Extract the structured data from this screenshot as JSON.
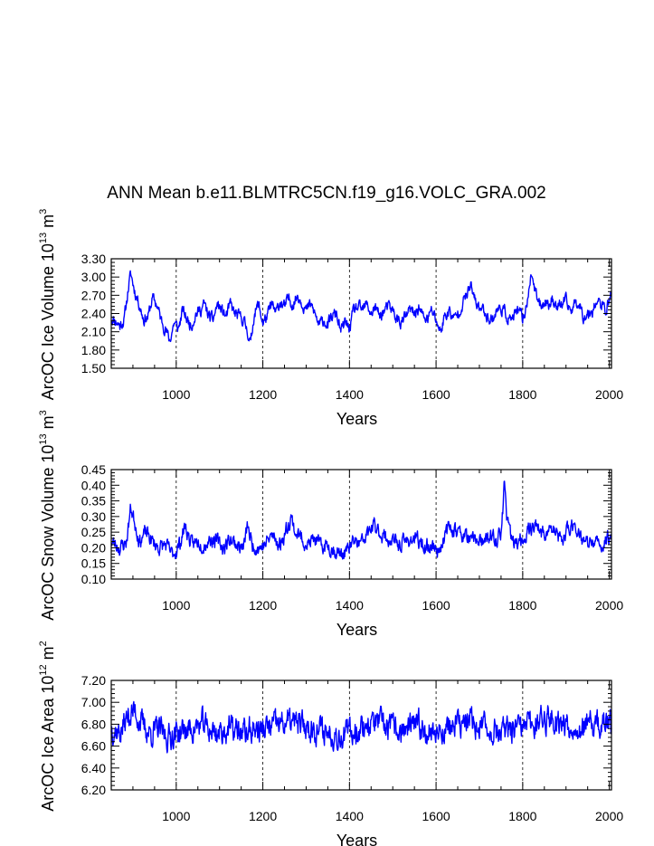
{
  "figure": {
    "title": "ANN Mean b.e11.BLMTRC5CN.f19_g16.VOLC_GRA.002"
  },
  "chart_data": [
    {
      "type": "line",
      "name": "ice-volume",
      "ylabel": {
        "main": "ArcOC Ice Volume 10",
        "exp": "13",
        "unit": " m",
        "unit_exp": "3"
      },
      "xlabel": "Years",
      "xlim": [
        850,
        2005
      ],
      "ylim": [
        1.5,
        3.3
      ],
      "xticks": [
        1000,
        1200,
        1400,
        1600,
        1800,
        2000
      ],
      "yticks": [
        1.5,
        1.8,
        2.1,
        2.4,
        2.7,
        3.0,
        3.3
      ],
      "ytick_labels": [
        "1.50",
        "1.80",
        "2.10",
        "2.40",
        "2.70",
        "3.00",
        "3.30"
      ],
      "vgrid": [
        1000,
        1200,
        1400,
        1600,
        1800
      ],
      "line_color": "#0000ff",
      "anchors": [
        [
          850,
          2.33
        ],
        [
          860,
          2.28
        ],
        [
          870,
          2.2
        ],
        [
          880,
          2.3
        ],
        [
          890,
          2.85
        ],
        [
          895,
          3.05
        ],
        [
          905,
          2.75
        ],
        [
          915,
          2.55
        ],
        [
          925,
          2.3
        ],
        [
          935,
          2.35
        ],
        [
          945,
          2.65
        ],
        [
          955,
          2.55
        ],
        [
          965,
          2.3
        ],
        [
          975,
          2.15
        ],
        [
          985,
          1.95
        ],
        [
          995,
          2.25
        ],
        [
          1005,
          2.15
        ],
        [
          1015,
          2.45
        ],
        [
          1025,
          2.3
        ],
        [
          1035,
          2.2
        ],
        [
          1045,
          2.4
        ],
        [
          1055,
          2.45
        ],
        [
          1065,
          2.55
        ],
        [
          1075,
          2.35
        ],
        [
          1085,
          2.3
        ],
        [
          1095,
          2.55
        ],
        [
          1105,
          2.45
        ],
        [
          1115,
          2.35
        ],
        [
          1125,
          2.55
        ],
        [
          1135,
          2.4
        ],
        [
          1145,
          2.35
        ],
        [
          1155,
          2.3
        ],
        [
          1165,
          2.1
        ],
        [
          1172,
          1.9
        ],
        [
          1180,
          2.4
        ],
        [
          1190,
          2.55
        ],
        [
          1200,
          2.25
        ],
        [
          1210,
          2.35
        ],
        [
          1220,
          2.55
        ],
        [
          1230,
          2.4
        ],
        [
          1240,
          2.6
        ],
        [
          1250,
          2.5
        ],
        [
          1260,
          2.65
        ],
        [
          1270,
          2.55
        ],
        [
          1280,
          2.7
        ],
        [
          1290,
          2.6
        ],
        [
          1300,
          2.45
        ],
        [
          1310,
          2.55
        ],
        [
          1320,
          2.4
        ],
        [
          1330,
          2.2
        ],
        [
          1340,
          2.3
        ],
        [
          1350,
          2.2
        ],
        [
          1360,
          2.35
        ],
        [
          1370,
          2.4
        ],
        [
          1380,
          2.1
        ],
        [
          1390,
          2.25
        ],
        [
          1400,
          2.15
        ],
        [
          1410,
          2.45
        ],
        [
          1420,
          2.5
        ],
        [
          1430,
          2.45
        ],
        [
          1440,
          2.55
        ],
        [
          1450,
          2.4
        ],
        [
          1460,
          2.5
        ],
        [
          1470,
          2.35
        ],
        [
          1480,
          2.45
        ],
        [
          1490,
          2.5
        ],
        [
          1500,
          2.45
        ],
        [
          1510,
          2.3
        ],
        [
          1520,
          2.25
        ],
        [
          1530,
          2.35
        ],
        [
          1540,
          2.45
        ],
        [
          1550,
          2.4
        ],
        [
          1560,
          2.5
        ],
        [
          1570,
          2.35
        ],
        [
          1580,
          2.3
        ],
        [
          1590,
          2.45
        ],
        [
          1600,
          2.3
        ],
        [
          1610,
          2.1
        ],
        [
          1620,
          2.35
        ],
        [
          1630,
          2.45
        ],
        [
          1640,
          2.3
        ],
        [
          1650,
          2.4
        ],
        [
          1660,
          2.55
        ],
        [
          1670,
          2.7
        ],
        [
          1680,
          2.85
        ],
        [
          1690,
          2.6
        ],
        [
          1700,
          2.5
        ],
        [
          1710,
          2.45
        ],
        [
          1720,
          2.35
        ],
        [
          1730,
          2.3
        ],
        [
          1740,
          2.45
        ],
        [
          1750,
          2.5
        ],
        [
          1760,
          2.4
        ],
        [
          1770,
          2.3
        ],
        [
          1780,
          2.35
        ],
        [
          1790,
          2.45
        ],
        [
          1800,
          2.3
        ],
        [
          1810,
          2.55
        ],
        [
          1815,
          2.9
        ],
        [
          1822,
          3.05
        ],
        [
          1830,
          2.7
        ],
        [
          1840,
          2.55
        ],
        [
          1850,
          2.6
        ],
        [
          1860,
          2.55
        ],
        [
          1870,
          2.65
        ],
        [
          1880,
          2.5
        ],
        [
          1890,
          2.55
        ],
        [
          1900,
          2.6
        ],
        [
          1910,
          2.45
        ],
        [
          1920,
          2.55
        ],
        [
          1930,
          2.6
        ],
        [
          1940,
          2.35
        ],
        [
          1950,
          2.4
        ],
        [
          1960,
          2.45
        ],
        [
          1970,
          2.6
        ],
        [
          1980,
          2.55
        ],
        [
          1990,
          2.45
        ],
        [
          2000,
          2.6
        ],
        [
          2005,
          2.75
        ]
      ],
      "noise": {
        "amp": 0.09,
        "seed": 11
      }
    },
    {
      "type": "line",
      "name": "snow-volume",
      "ylabel": {
        "main": "ArcOC Snow Volume 10",
        "exp": "13",
        "unit": " m",
        "unit_exp": "3"
      },
      "xlabel": "Years",
      "xlim": [
        850,
        2005
      ],
      "ylim": [
        0.1,
        0.45
      ],
      "xticks": [
        1000,
        1200,
        1400,
        1600,
        1800,
        2000
      ],
      "yticks": [
        0.1,
        0.15,
        0.2,
        0.25,
        0.3,
        0.35,
        0.4,
        0.45
      ],
      "ytick_labels": [
        "0.10",
        "0.15",
        "0.20",
        "0.25",
        "0.30",
        "0.35",
        "0.40",
        "0.45"
      ],
      "vgrid": [
        1000,
        1200,
        1400,
        1600,
        1800
      ],
      "line_color": "#0000ff",
      "anchors": [
        [
          850,
          0.22
        ],
        [
          870,
          0.2
        ],
        [
          885,
          0.22
        ],
        [
          895,
          0.33
        ],
        [
          905,
          0.28
        ],
        [
          915,
          0.22
        ],
        [
          930,
          0.25
        ],
        [
          945,
          0.22
        ],
        [
          960,
          0.2
        ],
        [
          975,
          0.21
        ],
        [
          990,
          0.18
        ],
        [
          1000,
          0.19
        ],
        [
          1010,
          0.22
        ],
        [
          1020,
          0.27
        ],
        [
          1035,
          0.21
        ],
        [
          1050,
          0.22
        ],
        [
          1065,
          0.21
        ],
        [
          1080,
          0.23
        ],
        [
          1095,
          0.22
        ],
        [
          1110,
          0.2
        ],
        [
          1125,
          0.23
        ],
        [
          1140,
          0.21
        ],
        [
          1155,
          0.2
        ],
        [
          1165,
          0.27
        ],
        [
          1175,
          0.21
        ],
        [
          1190,
          0.2
        ],
        [
          1205,
          0.21
        ],
        [
          1220,
          0.24
        ],
        [
          1240,
          0.21
        ],
        [
          1255,
          0.26
        ],
        [
          1265,
          0.3
        ],
        [
          1275,
          0.25
        ],
        [
          1290,
          0.23
        ],
        [
          1305,
          0.21
        ],
        [
          1320,
          0.23
        ],
        [
          1335,
          0.2
        ],
        [
          1350,
          0.21
        ],
        [
          1365,
          0.19
        ],
        [
          1380,
          0.18
        ],
        [
          1395,
          0.19
        ],
        [
          1410,
          0.22
        ],
        [
          1425,
          0.21
        ],
        [
          1440,
          0.24
        ],
        [
          1455,
          0.27
        ],
        [
          1470,
          0.25
        ],
        [
          1485,
          0.23
        ],
        [
          1500,
          0.22
        ],
        [
          1515,
          0.21
        ],
        [
          1530,
          0.22
        ],
        [
          1545,
          0.23
        ],
        [
          1560,
          0.22
        ],
        [
          1575,
          0.2
        ],
        [
          1590,
          0.21
        ],
        [
          1605,
          0.19
        ],
        [
          1620,
          0.24
        ],
        [
          1635,
          0.27
        ],
        [
          1650,
          0.25
        ],
        [
          1665,
          0.24
        ],
        [
          1680,
          0.22
        ],
        [
          1695,
          0.23
        ],
        [
          1710,
          0.21
        ],
        [
          1725,
          0.24
        ],
        [
          1740,
          0.22
        ],
        [
          1752,
          0.26
        ],
        [
          1758,
          0.41
        ],
        [
          1765,
          0.28
        ],
        [
          1775,
          0.22
        ],
        [
          1790,
          0.21
        ],
        [
          1800,
          0.23
        ],
        [
          1815,
          0.26
        ],
        [
          1830,
          0.28
        ],
        [
          1845,
          0.24
        ],
        [
          1860,
          0.26
        ],
        [
          1875,
          0.25
        ],
        [
          1890,
          0.22
        ],
        [
          1905,
          0.26
        ],
        [
          1920,
          0.28
        ],
        [
          1935,
          0.23
        ],
        [
          1950,
          0.21
        ],
        [
          1965,
          0.22
        ],
        [
          1980,
          0.2
        ],
        [
          1995,
          0.23
        ],
        [
          2005,
          0.24
        ]
      ],
      "noise": {
        "amp": 0.022,
        "seed": 23
      }
    },
    {
      "type": "line",
      "name": "ice-area",
      "ylabel": {
        "main": "ArcOC Ice Area 10",
        "exp": "12",
        "unit": " m",
        "unit_exp": "2"
      },
      "xlabel": "Years",
      "xlim": [
        850,
        2005
      ],
      "ylim": [
        6.2,
        7.2
      ],
      "xticks": [
        1000,
        1200,
        1400,
        1600,
        1800,
        2000
      ],
      "yticks": [
        6.2,
        6.4,
        6.6,
        6.8,
        7.0,
        7.2
      ],
      "ytick_labels": [
        "6.20",
        "6.40",
        "6.60",
        "6.80",
        "7.00",
        "7.20"
      ],
      "vgrid": [
        1000,
        1200,
        1400,
        1600,
        1800
      ],
      "line_color": "#0000ff",
      "anchors": [
        [
          850,
          6.78
        ],
        [
          870,
          6.72
        ],
        [
          890,
          6.88
        ],
        [
          905,
          6.92
        ],
        [
          920,
          6.8
        ],
        [
          940,
          6.72
        ],
        [
          960,
          6.75
        ],
        [
          980,
          6.68
        ],
        [
          1000,
          6.72
        ],
        [
          1020,
          6.74
        ],
        [
          1040,
          6.76
        ],
        [
          1060,
          6.8
        ],
        [
          1080,
          6.74
        ],
        [
          1100,
          6.72
        ],
        [
          1120,
          6.76
        ],
        [
          1140,
          6.74
        ],
        [
          1160,
          6.72
        ],
        [
          1180,
          6.76
        ],
        [
          1200,
          6.74
        ],
        [
          1220,
          6.78
        ],
        [
          1240,
          6.8
        ],
        [
          1260,
          6.82
        ],
        [
          1280,
          6.8
        ],
        [
          1300,
          6.78
        ],
        [
          1320,
          6.76
        ],
        [
          1340,
          6.74
        ],
        [
          1360,
          6.72
        ],
        [
          1380,
          6.7
        ],
        [
          1400,
          6.72
        ],
        [
          1420,
          6.76
        ],
        [
          1440,
          6.8
        ],
        [
          1460,
          6.82
        ],
        [
          1480,
          6.78
        ],
        [
          1500,
          6.76
        ],
        [
          1520,
          6.74
        ],
        [
          1540,
          6.76
        ],
        [
          1560,
          6.78
        ],
        [
          1580,
          6.75
        ],
        [
          1600,
          6.72
        ],
        [
          1620,
          6.76
        ],
        [
          1640,
          6.78
        ],
        [
          1660,
          6.8
        ],
        [
          1680,
          6.82
        ],
        [
          1700,
          6.78
        ],
        [
          1720,
          6.76
        ],
        [
          1740,
          6.74
        ],
        [
          1760,
          6.72
        ],
        [
          1780,
          6.74
        ],
        [
          1800,
          6.76
        ],
        [
          1820,
          6.8
        ],
        [
          1840,
          6.84
        ],
        [
          1860,
          6.86
        ],
        [
          1880,
          6.84
        ],
        [
          1900,
          6.8
        ],
        [
          1920,
          6.78
        ],
        [
          1940,
          6.76
        ],
        [
          1960,
          6.78
        ],
        [
          1980,
          6.8
        ],
        [
          2005,
          6.8
        ]
      ],
      "noise": {
        "amp": 0.11,
        "seed": 37
      }
    }
  ]
}
